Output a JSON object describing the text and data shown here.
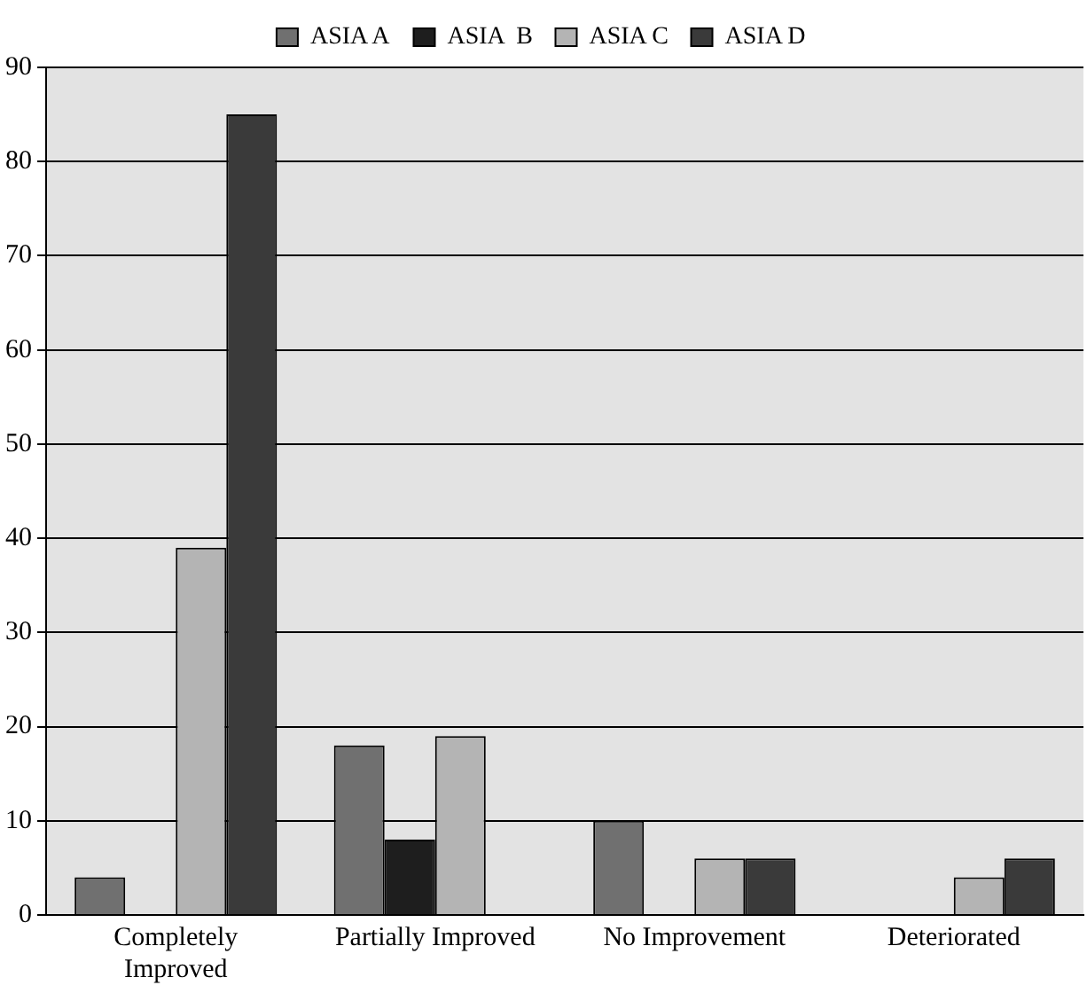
{
  "chart_data": {
    "type": "bar",
    "categories": [
      "Completely Improved",
      "Partially Improved",
      "No Improvement",
      "Deteriorated"
    ],
    "series": [
      {
        "name": "ASIA A",
        "color": "#707070",
        "values": [
          4,
          18,
          10,
          0
        ]
      },
      {
        "name": "ASIA  B",
        "color": "#1e1e1e",
        "values": [
          0,
          8,
          0,
          0
        ]
      },
      {
        "name": "ASIA C",
        "color": "#b4b4b4",
        "values": [
          39,
          19,
          6,
          4
        ]
      },
      {
        "name": "ASIA D",
        "color": "#3a3a3a",
        "values": [
          85,
          0,
          6,
          6
        ]
      }
    ],
    "ylim": [
      0,
      90
    ],
    "yticks": [
      0,
      10,
      20,
      30,
      40,
      50,
      60,
      70,
      80,
      90
    ],
    "grid": "y",
    "legend": "top",
    "marker": "square"
  }
}
